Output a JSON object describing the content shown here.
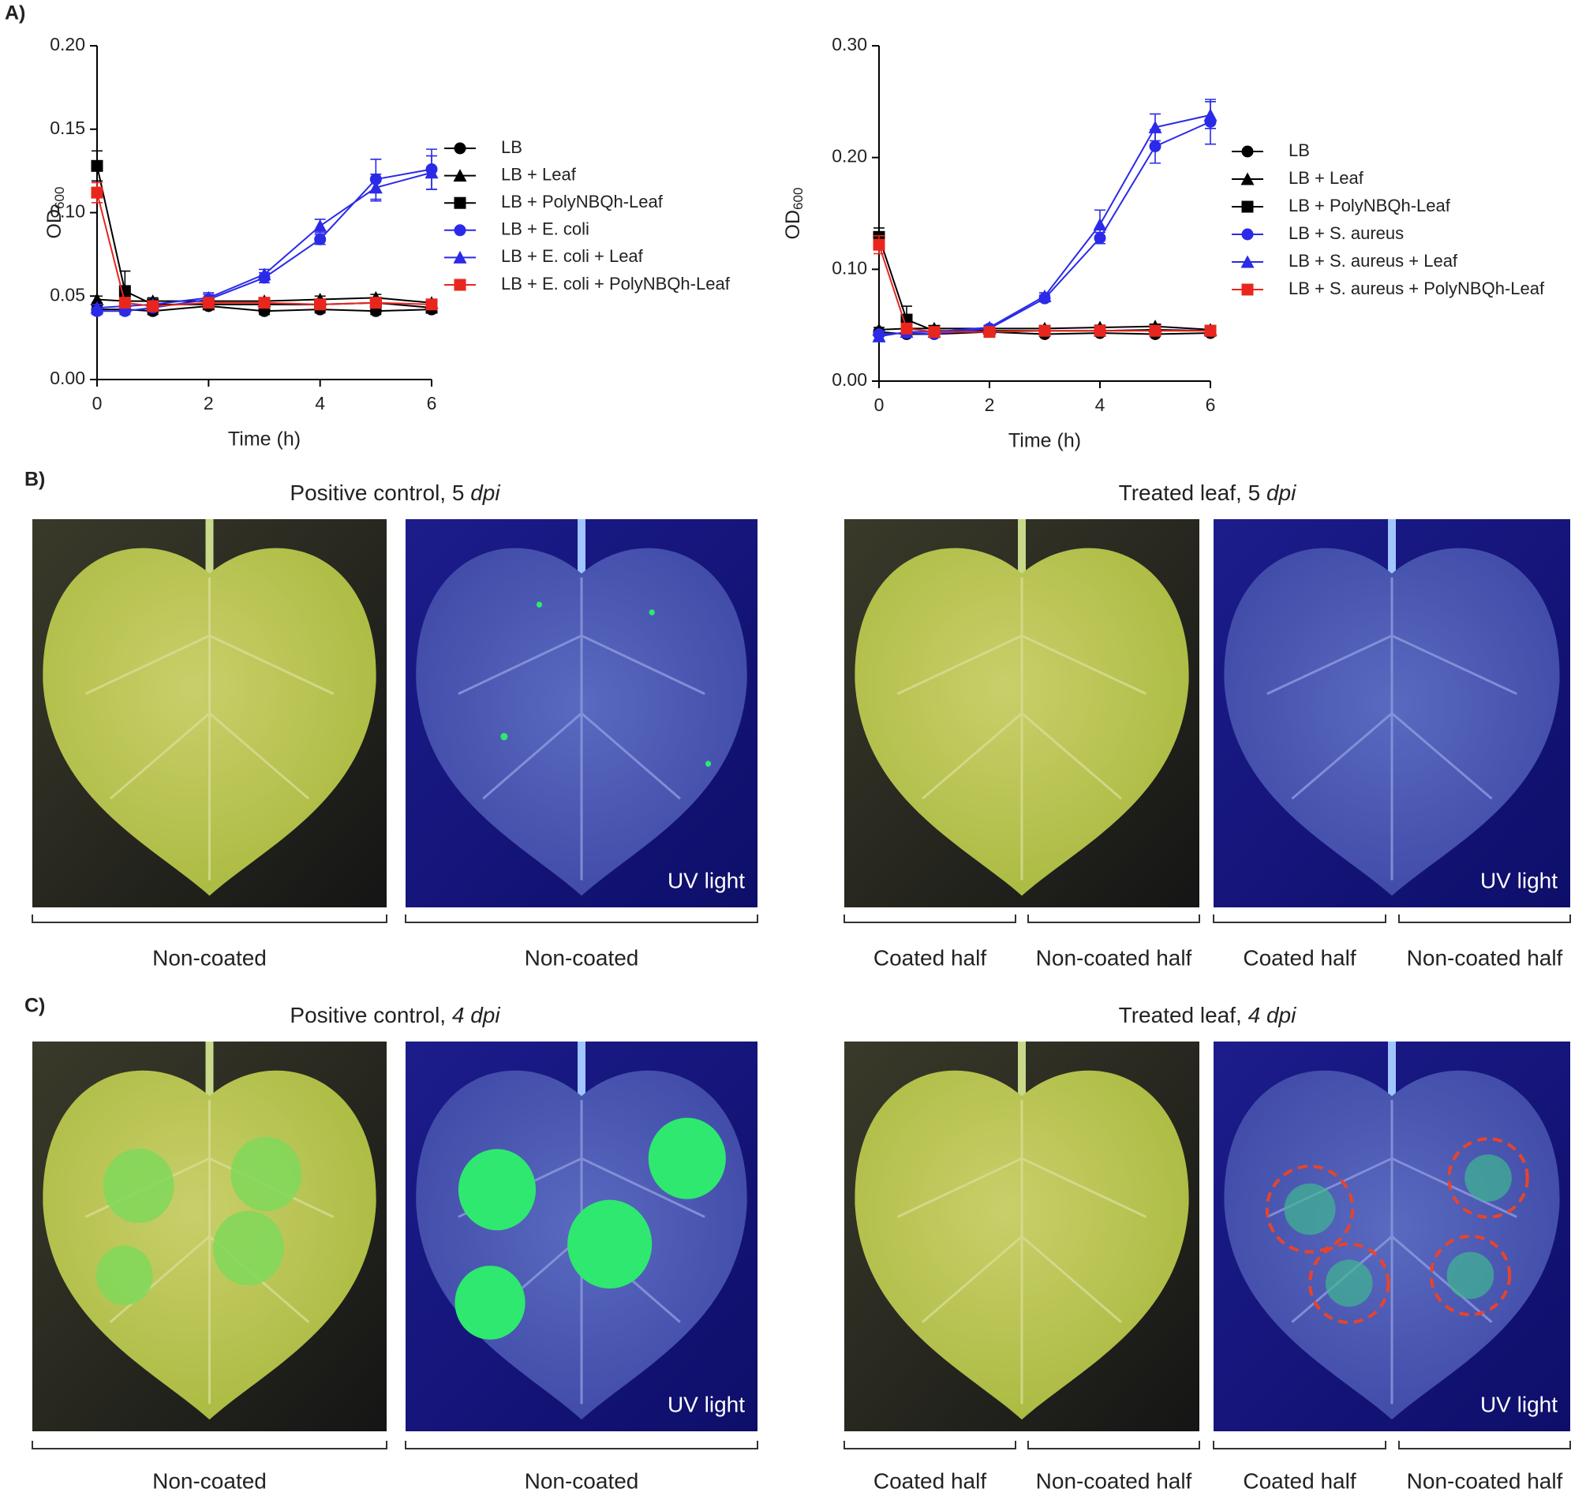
{
  "chart_data": [
    {
      "type": "line",
      "x_label": "Time (h)",
      "y_label": "OD",
      "y_label_sub": "600",
      "x": [
        0,
        0.5,
        1,
        2,
        3,
        4,
        5,
        6
      ],
      "xlim": [
        0,
        6
      ],
      "xticks": [
        0,
        2,
        4,
        6
      ],
      "ylim": [
        0,
        0.2
      ],
      "yticks": [
        {
          "value": 0,
          "label": "0.00"
        },
        {
          "value": 0.05,
          "label": "0.05"
        },
        {
          "value": 0.1,
          "label": "0.10"
        },
        {
          "value": 0.15,
          "label": "0.15"
        },
        {
          "value": 0.2,
          "label": "0.20"
        }
      ],
      "series": [
        {
          "name": "LB",
          "color": "#000000",
          "marker": "circle",
          "values": [
            0.042,
            0.042,
            0.041,
            0.044,
            0.041,
            0.042,
            0.041,
            0.042
          ],
          "errors": [
            0.002,
            0.002,
            0.002,
            0.002,
            0.002,
            0.002,
            0.002,
            0.002
          ]
        },
        {
          "name": "LB + Leaf",
          "color": "#000000",
          "marker": "triangle",
          "values": [
            0.048,
            0.047,
            0.047,
            0.047,
            0.047,
            0.048,
            0.049,
            0.046
          ],
          "errors": [
            0.002,
            0.002,
            0.002,
            0.002,
            0.002,
            0.002,
            0.002,
            0.002
          ]
        },
        {
          "name": "LB + PolyNBQh-Leaf",
          "color": "#000000",
          "marker": "square",
          "values": [
            0.128,
            0.053,
            0.045,
            0.045,
            0.045,
            0.045,
            0.046,
            0.043
          ],
          "errors": [
            0.009,
            0.012,
            0.002,
            0.002,
            0.002,
            0.002,
            0.002,
            0.002
          ]
        },
        {
          "name": "LB + E. coli",
          "color": "#2a2ae8",
          "marker": "circle",
          "values": [
            0.041,
            0.041,
            0.043,
            0.048,
            0.061,
            0.084,
            0.12,
            0.126
          ],
          "errors": [
            0.002,
            0.002,
            0.002,
            0.003,
            0.003,
            0.003,
            0.012,
            0.012
          ]
        },
        {
          "name": "LB + E. coli + Leaf",
          "color": "#2a2ae8",
          "marker": "triangle",
          "values": [
            0.043,
            0.044,
            0.045,
            0.049,
            0.063,
            0.092,
            0.115,
            0.124
          ],
          "errors": [
            0.002,
            0.002,
            0.002,
            0.003,
            0.003,
            0.004,
            0.008,
            0.01
          ]
        },
        {
          "name": "LB + E. coli + PolyNBQh-Leaf",
          "color": "#e8261e",
          "marker": "square",
          "values": [
            0.112,
            0.046,
            0.044,
            0.046,
            0.046,
            0.045,
            0.046,
            0.045
          ],
          "errors": [
            0.006,
            0.003,
            0.002,
            0.002,
            0.002,
            0.002,
            0.002,
            0.002
          ]
        }
      ]
    },
    {
      "type": "line",
      "x_label": "Time (h)",
      "y_label": "OD",
      "y_label_sub": "600",
      "x": [
        0,
        0.5,
        1,
        2,
        3,
        4,
        5,
        6
      ],
      "xlim": [
        0,
        6
      ],
      "xticks": [
        0,
        2,
        4,
        6
      ],
      "ylim": [
        0,
        0.3
      ],
      "yticks": [
        {
          "value": 0,
          "label": "0.00"
        },
        {
          "value": 0.1,
          "label": "0.10"
        },
        {
          "value": 0.2,
          "label": "0.20"
        },
        {
          "value": 0.3,
          "label": "0.30"
        }
      ],
      "series": [
        {
          "name": "LB",
          "color": "#000000",
          "marker": "circle",
          "values": [
            0.044,
            0.042,
            0.042,
            0.044,
            0.042,
            0.043,
            0.042,
            0.043
          ],
          "errors": [
            0.002,
            0.002,
            0.002,
            0.002,
            0.002,
            0.002,
            0.002,
            0.002
          ]
        },
        {
          "name": "LB + Leaf",
          "color": "#000000",
          "marker": "triangle",
          "values": [
            0.046,
            0.047,
            0.047,
            0.047,
            0.047,
            0.048,
            0.049,
            0.046
          ],
          "errors": [
            0.002,
            0.002,
            0.002,
            0.002,
            0.002,
            0.002,
            0.002,
            0.002
          ]
        },
        {
          "name": "LB + PolyNBQh-Leaf",
          "color": "#000000",
          "marker": "square",
          "values": [
            0.129,
            0.055,
            0.045,
            0.045,
            0.045,
            0.045,
            0.046,
            0.045
          ],
          "errors": [
            0.008,
            0.012,
            0.002,
            0.002,
            0.002,
            0.002,
            0.002,
            0.002
          ]
        },
        {
          "name": "LB + S. aureus",
          "color": "#2a2ae8",
          "marker": "circle",
          "values": [
            0.042,
            0.043,
            0.042,
            0.047,
            0.074,
            0.128,
            0.21,
            0.232
          ],
          "errors": [
            0.002,
            0.002,
            0.002,
            0.002,
            0.003,
            0.005,
            0.015,
            0.02
          ]
        },
        {
          "name": "LB + S. aureus + Leaf",
          "color": "#2a2ae8",
          "marker": "triangle",
          "values": [
            0.04,
            0.044,
            0.044,
            0.048,
            0.076,
            0.14,
            0.227,
            0.238
          ],
          "errors": [
            0.003,
            0.002,
            0.002,
            0.002,
            0.003,
            0.013,
            0.012,
            0.012
          ]
        },
        {
          "name": "LB + S. aureus + PolyNBQh-Leaf",
          "color": "#e8261e",
          "marker": "square",
          "values": [
            0.122,
            0.047,
            0.044,
            0.044,
            0.045,
            0.045,
            0.045,
            0.045
          ],
          "errors": [
            0.008,
            0.003,
            0.002,
            0.002,
            0.002,
            0.002,
            0.002,
            0.002
          ]
        }
      ]
    }
  ],
  "panel_labels": [
    "A)",
    "B)",
    "C)"
  ],
  "panel_b": {
    "titles": [
      {
        "text": "Positive control, 5 ",
        "italic": "dpi"
      },
      {
        "text": "Treated leaf, 5 ",
        "italic": "dpi"
      }
    ],
    "uv_labels": [
      "UV light",
      "UV light"
    ],
    "captions": [
      "Non-coated",
      "Non-coated",
      "Coated half",
      "Non-coated half",
      "Coated half",
      "Non-coated half"
    ]
  },
  "panel_c": {
    "titles": [
      {
        "text": "Positive control, ",
        "italic": "4 dpi"
      },
      {
        "text": "Treated leaf, ",
        "italic": "4 dpi"
      }
    ],
    "uv_labels": [
      "UV light",
      "UV light"
    ],
    "captions": [
      "Non-coated",
      "Non-coated",
      "Coated half",
      "Non-coated half",
      "Coated half",
      "Non-coated half"
    ]
  }
}
